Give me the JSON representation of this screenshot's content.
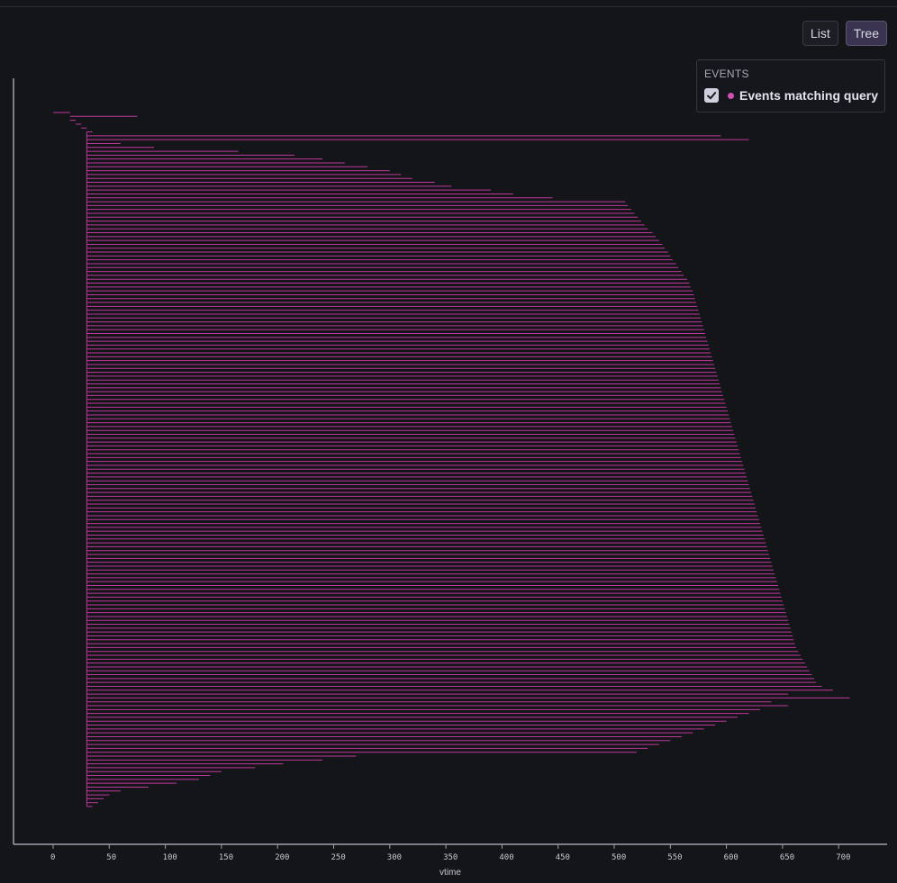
{
  "view_toggle": {
    "list_label": "List",
    "tree_label": "Tree",
    "active": "Tree"
  },
  "legend": {
    "title": "EVENTS",
    "items": [
      {
        "label": "Events matching query",
        "checked": true,
        "color": "#d24fb4"
      }
    ]
  },
  "colors": {
    "series": "#c0389c",
    "axis": "#a0a0ac",
    "background": "#141519"
  },
  "icons": {
    "checkbox": "check-icon"
  },
  "chart_data": {
    "type": "gantt",
    "xlabel": "vtime",
    "ylabel": "",
    "xlim": [
      -35,
      745
    ],
    "xticks": [
      0,
      50,
      100,
      150,
      200,
      250,
      300,
      350,
      400,
      450,
      500,
      550,
      600,
      650,
      700
    ],
    "grid": false,
    "legend_position": "top-right",
    "series": [
      {
        "name": "Events matching query",
        "spans": [
          [
            0,
            15
          ],
          [
            15,
            75
          ],
          [
            15,
            20
          ],
          [
            20,
            25
          ],
          [
            25,
            30
          ],
          [
            30,
            35
          ],
          [
            30,
            595
          ],
          [
            30,
            620
          ],
          [
            30,
            60
          ],
          [
            30,
            90
          ],
          [
            30,
            165
          ],
          [
            30,
            215
          ],
          [
            30,
            240
          ],
          [
            30,
            260
          ],
          [
            30,
            280
          ],
          [
            30,
            300
          ],
          [
            30,
            310
          ],
          [
            30,
            320
          ],
          [
            30,
            340
          ],
          [
            30,
            355
          ],
          [
            30,
            390
          ],
          [
            30,
            410
          ],
          [
            30,
            445
          ],
          [
            30,
            510
          ],
          [
            30,
            512
          ],
          [
            30,
            515
          ],
          [
            30,
            518
          ],
          [
            30,
            521
          ],
          [
            30,
            524
          ],
          [
            30,
            527
          ],
          [
            30,
            530
          ],
          [
            30,
            534
          ],
          [
            30,
            537
          ],
          [
            30,
            540
          ],
          [
            30,
            543
          ],
          [
            30,
            545
          ],
          [
            30,
            548
          ],
          [
            30,
            550
          ],
          [
            30,
            552
          ],
          [
            30,
            555
          ],
          [
            30,
            557
          ],
          [
            30,
            560
          ],
          [
            30,
            562
          ],
          [
            30,
            565
          ],
          [
            30,
            567
          ],
          [
            30,
            568
          ],
          [
            30,
            570
          ],
          [
            30,
            571
          ],
          [
            30,
            572
          ],
          [
            30,
            573
          ],
          [
            30,
            574
          ],
          [
            30,
            575
          ],
          [
            30,
            576
          ],
          [
            30,
            577
          ],
          [
            30,
            578
          ],
          [
            30,
            579
          ],
          [
            30,
            580
          ],
          [
            30,
            581
          ],
          [
            30,
            582
          ],
          [
            30,
            583
          ],
          [
            30,
            584
          ],
          [
            30,
            585
          ],
          [
            30,
            586
          ],
          [
            30,
            587
          ],
          [
            30,
            588
          ],
          [
            30,
            589
          ],
          [
            30,
            590
          ],
          [
            30,
            591
          ],
          [
            30,
            592
          ],
          [
            30,
            593
          ],
          [
            30,
            594
          ],
          [
            30,
            595
          ],
          [
            30,
            596
          ],
          [
            30,
            597
          ],
          [
            30,
            598
          ],
          [
            30,
            599
          ],
          [
            30,
            600
          ],
          [
            30,
            601
          ],
          [
            30,
            602
          ],
          [
            30,
            603
          ],
          [
            30,
            604
          ],
          [
            30,
            605
          ],
          [
            30,
            606
          ],
          [
            30,
            607
          ],
          [
            30,
            608
          ],
          [
            30,
            609
          ],
          [
            30,
            610
          ],
          [
            30,
            611
          ],
          [
            30,
            612
          ],
          [
            30,
            613
          ],
          [
            30,
            614
          ],
          [
            30,
            615
          ],
          [
            30,
            616
          ],
          [
            30,
            617
          ],
          [
            30,
            618
          ],
          [
            30,
            619
          ],
          [
            30,
            620
          ],
          [
            30,
            621
          ],
          [
            30,
            622
          ],
          [
            30,
            623
          ],
          [
            30,
            624
          ],
          [
            30,
            625
          ],
          [
            30,
            626
          ],
          [
            30,
            627
          ],
          [
            30,
            628
          ],
          [
            30,
            629
          ],
          [
            30,
            630
          ],
          [
            30,
            631
          ],
          [
            30,
            632
          ],
          [
            30,
            633
          ],
          [
            30,
            634
          ],
          [
            30,
            635
          ],
          [
            30,
            636
          ],
          [
            30,
            637
          ],
          [
            30,
            638
          ],
          [
            30,
            639
          ],
          [
            30,
            640
          ],
          [
            30,
            641
          ],
          [
            30,
            642
          ],
          [
            30,
            643
          ],
          [
            30,
            644
          ],
          [
            30,
            645
          ],
          [
            30,
            646
          ],
          [
            30,
            647
          ],
          [
            30,
            648
          ],
          [
            30,
            649
          ],
          [
            30,
            650
          ],
          [
            30,
            651
          ],
          [
            30,
            652
          ],
          [
            30,
            653
          ],
          [
            30,
            654
          ],
          [
            30,
            655
          ],
          [
            30,
            656
          ],
          [
            30,
            657
          ],
          [
            30,
            658
          ],
          [
            30,
            659
          ],
          [
            30,
            660
          ],
          [
            30,
            661
          ],
          [
            30,
            662
          ],
          [
            30,
            664
          ],
          [
            30,
            666
          ],
          [
            30,
            668
          ],
          [
            30,
            670
          ],
          [
            30,
            672
          ],
          [
            30,
            674
          ],
          [
            30,
            676
          ],
          [
            30,
            678
          ],
          [
            30,
            680
          ],
          [
            30,
            685
          ],
          [
            30,
            695
          ],
          [
            30,
            655
          ],
          [
            30,
            710
          ],
          [
            30,
            640
          ],
          [
            30,
            655
          ],
          [
            30,
            630
          ],
          [
            30,
            620
          ],
          [
            30,
            610
          ],
          [
            30,
            600
          ],
          [
            30,
            590
          ],
          [
            30,
            580
          ],
          [
            30,
            570
          ],
          [
            30,
            560
          ],
          [
            30,
            550
          ],
          [
            30,
            540
          ],
          [
            30,
            530
          ],
          [
            30,
            520
          ],
          [
            30,
            270
          ],
          [
            30,
            240
          ],
          [
            30,
            205
          ],
          [
            30,
            180
          ],
          [
            30,
            150
          ],
          [
            30,
            140
          ],
          [
            30,
            130
          ],
          [
            30,
            110
          ],
          [
            30,
            85
          ],
          [
            30,
            60
          ],
          [
            30,
            50
          ],
          [
            30,
            45
          ],
          [
            30,
            40
          ],
          [
            30,
            35
          ]
        ]
      }
    ]
  }
}
